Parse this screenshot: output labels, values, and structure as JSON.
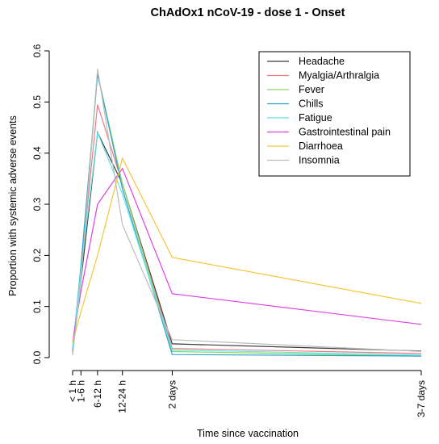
{
  "chart_data": {
    "type": "line",
    "title": "ChAdOx1 nCoV-19 - dose 1 - Onset",
    "xlabel": "Time since vaccination",
    "ylabel": "Proportion with systemic adverse events",
    "categories": [
      "< 1 h",
      "1-6 h",
      "6-12 h",
      "12-24 h",
      "2 days",
      "3-7 days"
    ],
    "x_hours": [
      0,
      3,
      9,
      18,
      36,
      126
    ],
    "ylim": [
      0,
      0.6
    ],
    "yticks": [
      "0.0",
      "0.1",
      "0.2",
      "0.3",
      "0.4",
      "0.5",
      "0.6"
    ],
    "grid": false,
    "legend_position": "top-right",
    "series": [
      {
        "name": "Headache",
        "color": "#3a3a3a",
        "values": [
          0.01,
          0.15,
          0.44,
          0.34,
          0.027,
          0.013
        ]
      },
      {
        "name": "Myalgia/Arthralgia",
        "color": "#f07a85",
        "values": [
          0.02,
          0.17,
          0.495,
          0.34,
          0.018,
          0.008
        ]
      },
      {
        "name": "Fever",
        "color": "#88d868",
        "values": [
          0.005,
          0.16,
          0.555,
          0.34,
          0.012,
          0.003
        ]
      },
      {
        "name": "Chills",
        "color": "#2f9fcc",
        "values": [
          0.015,
          0.18,
          0.555,
          0.33,
          0.006,
          0.003
        ]
      },
      {
        "name": "Fatigue",
        "color": "#5ce8e8",
        "values": [
          0.02,
          0.17,
          0.44,
          0.32,
          0.015,
          0.005
        ]
      },
      {
        "name": "Gastrointestinal pain",
        "color": "#e040e0",
        "values": [
          0.03,
          0.13,
          0.3,
          0.37,
          0.125,
          0.065
        ]
      },
      {
        "name": "Diarrhoea",
        "color": "#f5c73a",
        "values": [
          0.03,
          0.09,
          0.2,
          0.39,
          0.196,
          0.106
        ]
      },
      {
        "name": "Insomnia",
        "color": "#bdbdbd",
        "values": [
          0.005,
          0.15,
          0.565,
          0.26,
          0.035,
          0.012
        ]
      }
    ]
  }
}
